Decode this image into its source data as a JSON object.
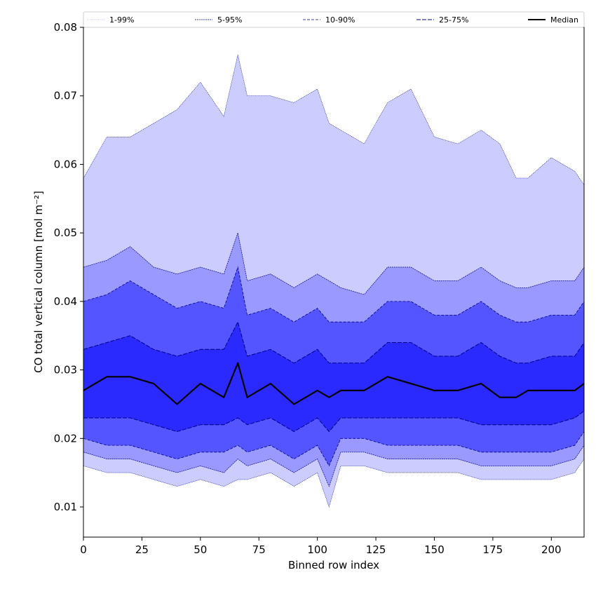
{
  "chart_data": {
    "type": "area",
    "title": "",
    "xlabel": "Binned row index",
    "ylabel": "CO total vertical column [mol m⁻²]",
    "xlim": [
      0,
      214
    ],
    "ylim": [
      0.0056,
      0.08
    ],
    "x_ticks": [
      0,
      25,
      50,
      75,
      100,
      125,
      150,
      175,
      200
    ],
    "y_ticks": [
      0.01,
      0.02,
      0.03,
      0.04,
      0.05,
      0.06,
      0.07,
      0.08
    ],
    "y_tick_labels": [
      "0.01",
      "0.02",
      "0.03",
      "0.04",
      "0.05",
      "0.06",
      "0.07",
      "0.08"
    ],
    "x_tick_labels": [
      "0",
      "25",
      "50",
      "75",
      "100",
      "125",
      "150",
      "175",
      "200"
    ],
    "legend_position": "top, full-width strip above the plot",
    "grid": false,
    "colors": {
      "band_1_99": "#ccccff",
      "band_5_95": "#9999ff",
      "band_10_90": "#5555ff",
      "band_25_75": "#2a2aff",
      "edge_line": "#00008b",
      "median": "#000000"
    },
    "x": [
      0,
      10,
      20,
      30,
      40,
      50,
      60,
      66,
      70,
      80,
      90,
      100,
      105,
      110,
      120,
      130,
      140,
      150,
      160,
      170,
      178,
      185,
      190,
      200,
      210,
      214
    ],
    "series": [
      {
        "name": "1-99%",
        "band": "1-99%",
        "upper": [
          0.058,
          0.064,
          0.064,
          0.066,
          0.068,
          0.072,
          0.067,
          0.076,
          0.07,
          0.07,
          0.069,
          0.071,
          0.066,
          0.065,
          0.063,
          0.069,
          0.071,
          0.064,
          0.063,
          0.065,
          0.063,
          0.058,
          0.058,
          0.061,
          0.059,
          0.057
        ],
        "lower": [
          0.016,
          0.015,
          0.015,
          0.014,
          0.013,
          0.014,
          0.013,
          0.014,
          0.014,
          0.015,
          0.013,
          0.015,
          0.01,
          0.016,
          0.016,
          0.015,
          0.015,
          0.015,
          0.015,
          0.014,
          0.014,
          0.014,
          0.014,
          0.014,
          0.015,
          0.017
        ]
      },
      {
        "name": "5-95%",
        "band": "5-95%",
        "upper": [
          0.045,
          0.046,
          0.048,
          0.045,
          0.044,
          0.045,
          0.044,
          0.05,
          0.043,
          0.044,
          0.042,
          0.044,
          0.043,
          0.042,
          0.041,
          0.045,
          0.045,
          0.043,
          0.043,
          0.045,
          0.043,
          0.042,
          0.042,
          0.043,
          0.043,
          0.045
        ],
        "lower": [
          0.018,
          0.017,
          0.017,
          0.016,
          0.015,
          0.016,
          0.015,
          0.017,
          0.016,
          0.017,
          0.015,
          0.017,
          0.013,
          0.018,
          0.018,
          0.017,
          0.017,
          0.017,
          0.017,
          0.016,
          0.016,
          0.016,
          0.016,
          0.016,
          0.017,
          0.019
        ]
      },
      {
        "name": "10-90%",
        "band": "10-90%",
        "upper": [
          0.04,
          0.041,
          0.043,
          0.041,
          0.039,
          0.04,
          0.039,
          0.045,
          0.038,
          0.039,
          0.037,
          0.039,
          0.037,
          0.037,
          0.037,
          0.04,
          0.04,
          0.038,
          0.038,
          0.04,
          0.038,
          0.037,
          0.037,
          0.038,
          0.038,
          0.04
        ],
        "lower": [
          0.02,
          0.019,
          0.019,
          0.018,
          0.017,
          0.018,
          0.018,
          0.019,
          0.018,
          0.019,
          0.017,
          0.019,
          0.016,
          0.02,
          0.02,
          0.019,
          0.019,
          0.019,
          0.019,
          0.018,
          0.018,
          0.018,
          0.018,
          0.018,
          0.019,
          0.021
        ]
      },
      {
        "name": "25-75%",
        "band": "25-75%",
        "upper": [
          0.033,
          0.034,
          0.035,
          0.033,
          0.032,
          0.033,
          0.033,
          0.037,
          0.032,
          0.033,
          0.031,
          0.033,
          0.031,
          0.031,
          0.031,
          0.034,
          0.034,
          0.032,
          0.032,
          0.034,
          0.032,
          0.031,
          0.031,
          0.032,
          0.032,
          0.034
        ],
        "lower": [
          0.023,
          0.023,
          0.023,
          0.022,
          0.021,
          0.022,
          0.022,
          0.023,
          0.022,
          0.023,
          0.021,
          0.023,
          0.021,
          0.023,
          0.023,
          0.023,
          0.023,
          0.023,
          0.023,
          0.022,
          0.022,
          0.022,
          0.022,
          0.022,
          0.023,
          0.024
        ]
      },
      {
        "name": "Median",
        "band": "median",
        "values": [
          0.027,
          0.029,
          0.029,
          0.028,
          0.025,
          0.028,
          0.026,
          0.031,
          0.026,
          0.028,
          0.025,
          0.027,
          0.026,
          0.027,
          0.027,
          0.029,
          0.028,
          0.027,
          0.027,
          0.028,
          0.026,
          0.026,
          0.027,
          0.027,
          0.027,
          0.028
        ]
      }
    ]
  }
}
